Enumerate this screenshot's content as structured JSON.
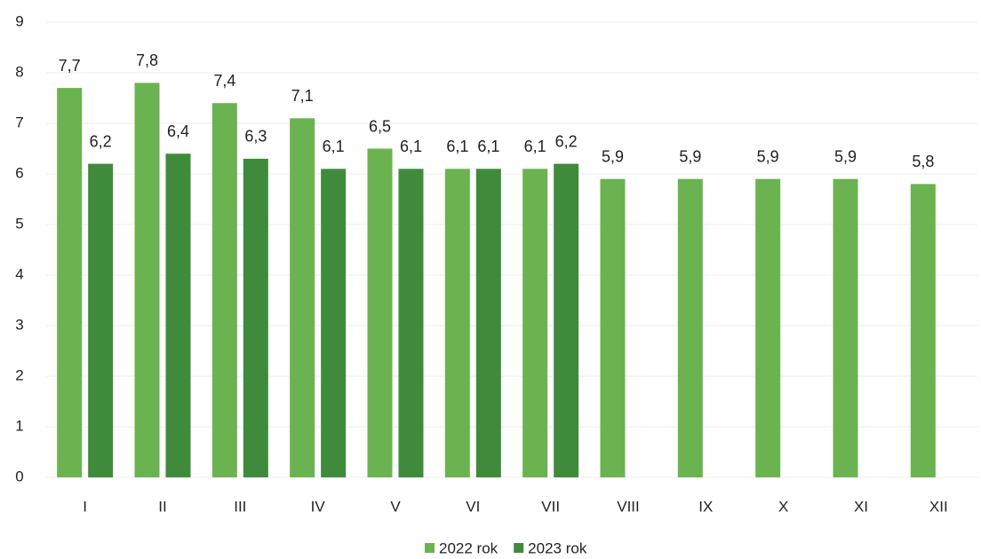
{
  "chart_data": {
    "type": "bar",
    "categories": [
      "I",
      "II",
      "III",
      "IV",
      "V",
      "VI",
      "VII",
      "VIII",
      "IX",
      "X",
      "XI",
      "XII"
    ],
    "series": [
      {
        "name": "2022 rok",
        "color": "#6bb350",
        "values": [
          7.7,
          7.8,
          7.4,
          7.1,
          6.5,
          6.1,
          6.1,
          5.9,
          5.9,
          5.9,
          5.9,
          5.8
        ],
        "value_labels": [
          "7,7",
          "7,8",
          "7,4",
          "7,1",
          "6,5",
          "6,1",
          "6,1",
          "5,9",
          "5,9",
          "5,9",
          "5,9",
          "5,8"
        ]
      },
      {
        "name": "2023 rok",
        "color": "#3f8b3b",
        "values": [
          6.2,
          6.4,
          6.3,
          6.1,
          6.1,
          6.1,
          6.2,
          null,
          null,
          null,
          null,
          null
        ],
        "value_labels": [
          "6,2",
          "6,4",
          "6,3",
          "6,1",
          "6,1",
          "6,1",
          "6,2",
          null,
          null,
          null,
          null,
          null
        ]
      }
    ],
    "ylim": [
      0,
      9
    ],
    "yticks": [
      0,
      1,
      2,
      3,
      4,
      5,
      6,
      7,
      8,
      9
    ],
    "grid": true,
    "legend": "bottom"
  }
}
